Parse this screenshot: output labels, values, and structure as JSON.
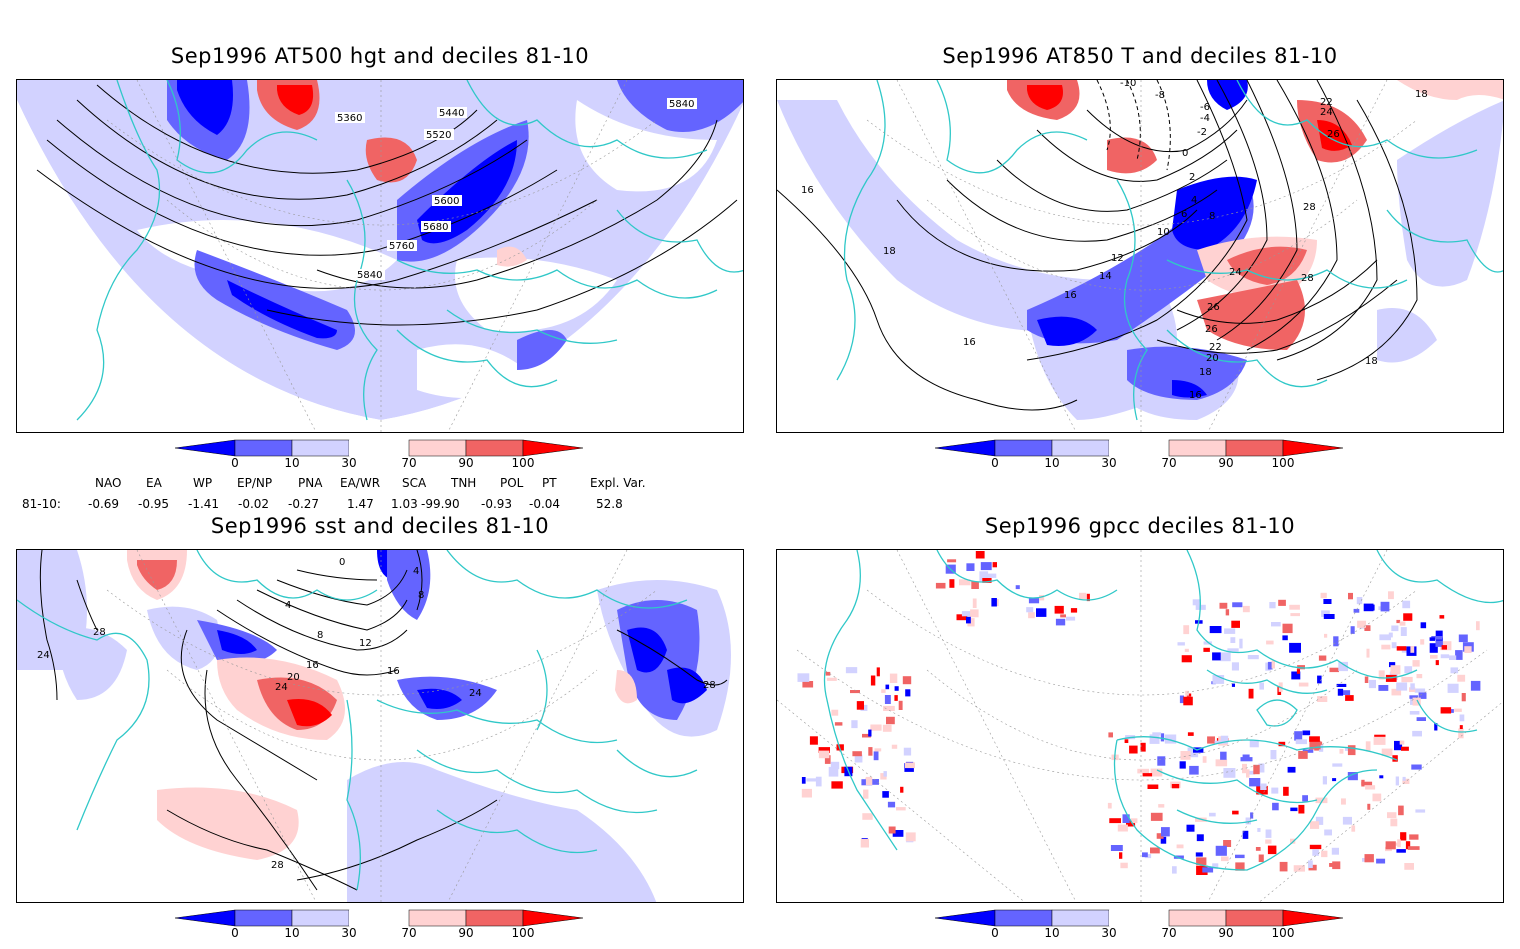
{
  "colors": {
    "deep_blue": "#0000ff",
    "mid_blue": "#6464ff",
    "light_blue": "#d2d2ff",
    "light_red": "#ffd2d2",
    "mid_red": "#f06464",
    "deep_red": "#ff0000",
    "coast": "#30c8c8"
  },
  "colorbar": {
    "ticks": [
      "0",
      "10",
      "30",
      "70",
      "90",
      "100"
    ]
  },
  "panels": {
    "hgt": {
      "title": "Sep1996 AT500 hgt and deciles 81-10",
      "contour_labels": [
        "5840",
        "5440",
        "5360",
        "5520",
        "5600",
        "5680",
        "5760",
        "5840"
      ]
    },
    "t850": {
      "title": "Sep1996 AT850 T and deciles 81-10",
      "contour_labels": [
        "-10",
        "-8",
        "-6",
        "-4",
        "-2",
        "0",
        "2",
        "4",
        "6",
        "8",
        "10",
        "12",
        "14",
        "16",
        "16",
        "16",
        "16",
        "18",
        "18",
        "18",
        "18",
        "20",
        "22",
        "22",
        "24",
        "24",
        "26",
        "26",
        "26",
        "28",
        "28"
      ]
    },
    "sst": {
      "title": "Sep1996 sst and deciles 81-10",
      "contour_labels": [
        "0",
        "4",
        "4",
        "8",
        "8",
        "12",
        "16",
        "16",
        "20",
        "24",
        "24",
        "24",
        "28",
        "28",
        "28"
      ]
    },
    "gpcc": {
      "title": "Sep1996 gpcc deciles 81-10"
    }
  },
  "indices": {
    "headers": [
      "NAO",
      "EA",
      "WP",
      "EP/NP",
      "PNA",
      "EA/WR",
      "SCA",
      "TNH",
      "POL",
      "PT",
      "Expl. Var."
    ],
    "row_label": "81-10:",
    "values": [
      "-0.69",
      "-0.95",
      "-1.41",
      "-0.02",
      "-0.27",
      "1.47",
      "1.03",
      "-99.90",
      "-0.93",
      "-0.04",
      "52.8"
    ]
  }
}
